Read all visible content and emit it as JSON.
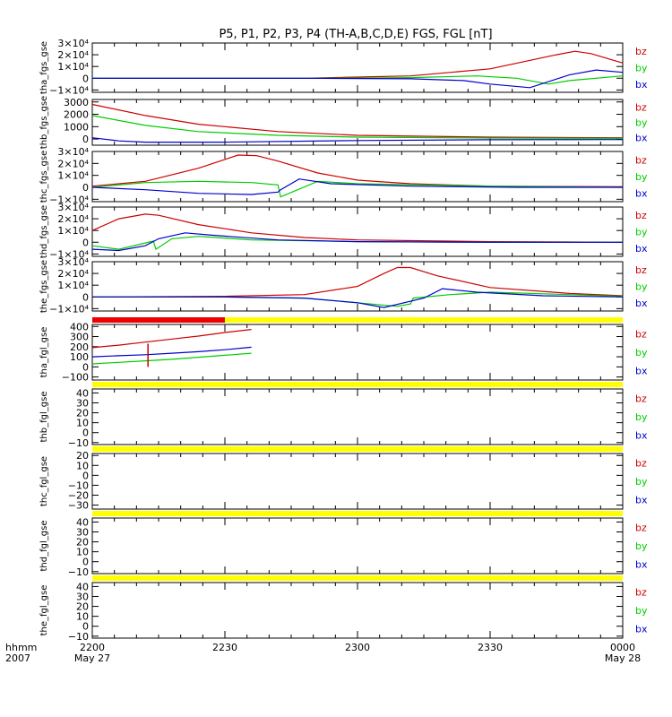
{
  "title": "P5, P1, P2, P3, P4 (TH-A,B,C,D,E) FGS, FGL [nT]",
  "colors": {
    "bz": "#cc0000",
    "by": "#00cc00",
    "bx": "#0000cc",
    "bar_yellow": "#ffff00",
    "bar_red": "#ee0000",
    "axis": "#000000"
  },
  "footer": {
    "row1_label": "hhmm",
    "row2_label": "2007"
  },
  "chart_data": {
    "type": "line",
    "x_range_hours": [
      0,
      2
    ],
    "x_ticks": [
      {
        "t": 0,
        "label": "2200",
        "sub": "May 27"
      },
      {
        "t": 0.5,
        "label": "2230",
        "sub": ""
      },
      {
        "t": 1.0,
        "label": "2300",
        "sub": ""
      },
      {
        "t": 1.5,
        "label": "2330",
        "sub": ""
      },
      {
        "t": 2.0,
        "label": "0000",
        "sub": "May 28"
      }
    ],
    "panels": [
      {
        "id": "tha_fgs_gse",
        "ylabel": "tha_fgs_gse",
        "ylim": [
          -12000,
          30000
        ],
        "ticks": [
          {
            "v": 30000,
            "t": "3×10⁴"
          },
          {
            "v": 20000,
            "t": "2×10⁴"
          },
          {
            "v": 10000,
            "t": "1×10⁴"
          },
          {
            "v": 0,
            "t": "0"
          },
          {
            "v": -10000,
            "t": "−1×10⁴"
          }
        ],
        "legend": [
          "bz",
          "by",
          "bx"
        ],
        "series": [
          {
            "name": "bz",
            "x": [
              0,
              0.8,
              1.2,
              1.5,
              1.75,
              1.82,
              1.88,
              2.0
            ],
            "y": [
              0,
              0,
              2000,
              8000,
              20000,
              23000,
              21000,
              13000
            ]
          },
          {
            "name": "by",
            "x": [
              0,
              0.8,
              1.2,
              1.45,
              1.6,
              1.72,
              1.8,
              2.0
            ],
            "y": [
              0,
              0,
              500,
              2000,
              0,
              -5000,
              -2000,
              2000
            ]
          },
          {
            "name": "bx",
            "x": [
              0,
              0.8,
              1.2,
              1.4,
              1.5,
              1.65,
              1.8,
              1.9,
              2.0
            ],
            "y": [
              0,
              0,
              -500,
              -2000,
              -5000,
              -8000,
              3000,
              7000,
              5000
            ]
          }
        ]
      },
      {
        "id": "thb_fgs_gse",
        "ylabel": "thb_fgs_gse",
        "ylim": [
          -500,
          3200
        ],
        "ticks": [
          {
            "v": 3000,
            "t": "3000"
          },
          {
            "v": 2000,
            "t": "2000"
          },
          {
            "v": 1000,
            "t": "1000"
          },
          {
            "v": 0,
            "t": "0"
          }
        ],
        "legend": [
          "bz",
          "by",
          "bx"
        ],
        "series": [
          {
            "name": "bz",
            "x": [
              0,
              0.2,
              0.4,
              0.7,
              1.0,
              1.5,
              2.0
            ],
            "y": [
              2800,
              1900,
              1200,
              600,
              300,
              150,
              100
            ]
          },
          {
            "name": "by",
            "x": [
              0,
              0.2,
              0.4,
              0.7,
              1.0,
              1.5,
              2.0
            ],
            "y": [
              1900,
              1100,
              600,
              300,
              150,
              80,
              50
            ]
          },
          {
            "name": "bx",
            "x": [
              0,
              0.1,
              0.2,
              0.5,
              1.0,
              1.5,
              2.0
            ],
            "y": [
              100,
              -150,
              -250,
              -250,
              -120,
              -60,
              -40
            ]
          }
        ]
      },
      {
        "id": "thc_fgs_gse",
        "ylabel": "thc_fgs_gse",
        "ylim": [
          -12000,
          30000
        ],
        "ticks": [
          {
            "v": 30000,
            "t": "3×10⁴"
          },
          {
            "v": 20000,
            "t": "2×10⁴"
          },
          {
            "v": 10000,
            "t": "1×10⁴"
          },
          {
            "v": 0,
            "t": "0"
          },
          {
            "v": -10000,
            "t": "−1×10⁴"
          }
        ],
        "legend": [
          "bz",
          "by",
          "bx"
        ],
        "series": [
          {
            "name": "bz",
            "x": [
              0,
              0.2,
              0.4,
              0.55,
              0.62,
              0.7,
              0.85,
              1.0,
              1.2,
              1.5,
              2.0
            ],
            "y": [
              1000,
              5000,
              16000,
              27000,
              26500,
              22000,
              12000,
              6000,
              3000,
              1000,
              500
            ]
          },
          {
            "name": "by",
            "x": [
              0,
              0.2,
              0.4,
              0.6,
              0.7,
              0.71,
              0.85,
              1.0,
              1.5,
              2.0
            ],
            "y": [
              0,
              4000,
              5000,
              4000,
              2000,
              -8000,
              5000,
              3000,
              1000,
              0
            ]
          },
          {
            "name": "bx",
            "x": [
              0,
              0.2,
              0.4,
              0.6,
              0.7,
              0.71,
              0.78,
              0.9,
              1.2,
              1.6,
              2.0
            ],
            "y": [
              0,
              -2000,
              -5000,
              -6000,
              -4000,
              -2000,
              7000,
              3000,
              1000,
              0,
              0
            ]
          }
        ]
      },
      {
        "id": "thd_fgs_gse",
        "ylabel": "thd_fgs_gse",
        "ylim": [
          -12000,
          30000
        ],
        "ticks": [
          {
            "v": 30000,
            "t": "3×10⁴"
          },
          {
            "v": 20000,
            "t": "2×10⁴"
          },
          {
            "v": 10000,
            "t": "1×10⁴"
          },
          {
            "v": 0,
            "t": "0"
          },
          {
            "v": -10000,
            "t": "−1×10⁴"
          }
        ],
        "legend": [
          "bz",
          "by",
          "bx"
        ],
        "series": [
          {
            "name": "bz",
            "x": [
              0,
              0.1,
              0.2,
              0.25,
              0.4,
              0.6,
              0.8,
              1.0,
              1.5,
              2.0
            ],
            "y": [
              10000,
              20000,
              24000,
              23000,
              15000,
              8000,
              4000,
              2000,
              500,
              0
            ]
          },
          {
            "name": "by",
            "x": [
              0,
              0.1,
              0.23,
              0.24,
              0.3,
              0.4,
              0.6,
              1.0,
              1.5,
              2.0
            ],
            "y": [
              -3000,
              -6000,
              1000,
              -6000,
              3000,
              5000,
              2000,
              500,
              0,
              0
            ]
          },
          {
            "name": "bx",
            "x": [
              0,
              0.1,
              0.2,
              0.25,
              0.35,
              0.45,
              0.7,
              1.0,
              1.5,
              2.0
            ],
            "y": [
              -6000,
              -7000,
              -3000,
              3000,
              8000,
              6000,
              2000,
              500,
              0,
              0
            ]
          }
        ]
      },
      {
        "id": "the_fgs_gse",
        "ylabel": "the_fgs_gse",
        "ylim": [
          -12000,
          30000
        ],
        "ticks": [
          {
            "v": 30000,
            "t": "3×10⁴"
          },
          {
            "v": 20000,
            "t": "2×10⁴"
          },
          {
            "v": 10000,
            "t": "1×10⁴"
          },
          {
            "v": 0,
            "t": "0"
          },
          {
            "v": -10000,
            "t": "−1×10⁴"
          }
        ],
        "legend": [
          "bz",
          "by",
          "bx"
        ],
        "series": [
          {
            "name": "bz",
            "x": [
              0,
              0.5,
              0.8,
              1.0,
              1.1,
              1.15,
              1.2,
              1.3,
              1.5,
              1.8,
              2.0
            ],
            "y": [
              0,
              500,
              2000,
              9000,
              20000,
              25000,
              25000,
              18000,
              8000,
              3000,
              1000
            ]
          },
          {
            "name": "by",
            "x": [
              0,
              0.5,
              0.8,
              1.0,
              1.15,
              1.2,
              1.21,
              1.35,
              1.5,
              1.8,
              2.0
            ],
            "y": [
              0,
              0,
              -1000,
              -5000,
              -8000,
              -6000,
              -1000,
              2000,
              4000,
              2000,
              500
            ]
          },
          {
            "name": "bx",
            "x": [
              0,
              0.5,
              0.8,
              1.0,
              1.1,
              1.25,
              1.32,
              1.45,
              1.7,
              2.0
            ],
            "y": [
              0,
              0,
              -1000,
              -5000,
              -9000,
              -1000,
              7000,
              4000,
              1000,
              0
            ]
          }
        ]
      },
      {
        "id": "tha_fgl_gse",
        "ylabel": "tha_fgl_gse",
        "ylim": [
          -130,
          420
        ],
        "ticks": [
          {
            "v": 400,
            "t": "400"
          },
          {
            "v": 300,
            "t": "300"
          },
          {
            "v": 200,
            "t": "200"
          },
          {
            "v": 100,
            "t": "100"
          },
          {
            "v": 0,
            "t": "0"
          },
          {
            "v": -100,
            "t": "−100"
          }
        ],
        "legend": [
          "bz",
          "by",
          "bx"
        ],
        "series": [
          {
            "name": "bz",
            "x": [
              0,
              0.1,
              0.2,
              0.3,
              0.4,
              0.5,
              0.6
            ],
            "y": [
              190,
              215,
              245,
              275,
              305,
              340,
              370
            ]
          },
          {
            "name": "by",
            "x": [
              0,
              0.1,
              0.2,
              0.3,
              0.4,
              0.5,
              0.6
            ],
            "y": [
              30,
              45,
              60,
              75,
              95,
              115,
              135
            ]
          },
          {
            "name": "bx",
            "x": [
              0,
              0.1,
              0.2,
              0.3,
              0.4,
              0.5,
              0.6
            ],
            "y": [
              100,
              110,
              120,
              135,
              150,
              170,
              195
            ]
          }
        ],
        "spike": {
          "x": 0.21,
          "y": [
            0,
            230
          ]
        }
      },
      {
        "id": "thb_fgl_gse",
        "ylabel": "thb_fgl_gse",
        "ylim": [
          -12,
          44
        ],
        "ticks": [
          {
            "v": 40,
            "t": "40"
          },
          {
            "v": 30,
            "t": "30"
          },
          {
            "v": 20,
            "t": "20"
          },
          {
            "v": 10,
            "t": "10"
          },
          {
            "v": 0,
            "t": "0"
          },
          {
            "v": -10,
            "t": "−10"
          }
        ],
        "legend": [
          "bz",
          "by",
          "bx"
        ],
        "series": []
      },
      {
        "id": "thc_fgl_gse",
        "ylabel": "thc_fgl_gse",
        "ylim": [
          -34,
          22
        ],
        "ticks": [
          {
            "v": 20,
            "t": "20"
          },
          {
            "v": 10,
            "t": "10"
          },
          {
            "v": 0,
            "t": "0"
          },
          {
            "v": -10,
            "t": "−10"
          },
          {
            "v": -20,
            "t": "−20"
          },
          {
            "v": -30,
            "t": "−30"
          }
        ],
        "legend": [
          "bz",
          "by",
          "bx"
        ],
        "series": []
      },
      {
        "id": "thd_fgl_gse",
        "ylabel": "thd_fgl_gse",
        "ylim": [
          -12,
          44
        ],
        "ticks": [
          {
            "v": 40,
            "t": "40"
          },
          {
            "v": 30,
            "t": "30"
          },
          {
            "v": 20,
            "t": "20"
          },
          {
            "v": 10,
            "t": "10"
          },
          {
            "v": 0,
            "t": "0"
          },
          {
            "v": -10,
            "t": "−10"
          }
        ],
        "legend": [
          "bz",
          "by",
          "bx"
        ],
        "series": []
      },
      {
        "id": "the_fgl_gse",
        "ylabel": "the_fgl_gse",
        "ylim": [
          -12,
          44
        ],
        "ticks": [
          {
            "v": 40,
            "t": "40"
          },
          {
            "v": 30,
            "t": "30"
          },
          {
            "v": 20,
            "t": "20"
          },
          {
            "v": 10,
            "t": "10"
          },
          {
            "v": 0,
            "t": "0"
          },
          {
            "v": -10,
            "t": "−10"
          }
        ],
        "legend": [
          "bz",
          "by",
          "bx"
        ],
        "series": []
      }
    ],
    "status_bars": [
      {
        "after_panel": 4,
        "segments": [
          {
            "from": 0,
            "to": 0.5,
            "color": "bar_red"
          },
          {
            "from": 0.5,
            "to": 2,
            "color": "bar_yellow"
          }
        ]
      },
      {
        "after_panel": 5,
        "segments": [
          {
            "from": 0,
            "to": 2,
            "color": "bar_yellow"
          }
        ]
      },
      {
        "after_panel": 6,
        "segments": [
          {
            "from": 0,
            "to": 2,
            "color": "bar_yellow"
          }
        ]
      },
      {
        "after_panel": 7,
        "segments": [
          {
            "from": 0,
            "to": 2,
            "color": "bar_yellow"
          }
        ]
      },
      {
        "after_panel": 8,
        "segments": [
          {
            "from": 0,
            "to": 2,
            "color": "bar_yellow"
          }
        ]
      }
    ]
  }
}
